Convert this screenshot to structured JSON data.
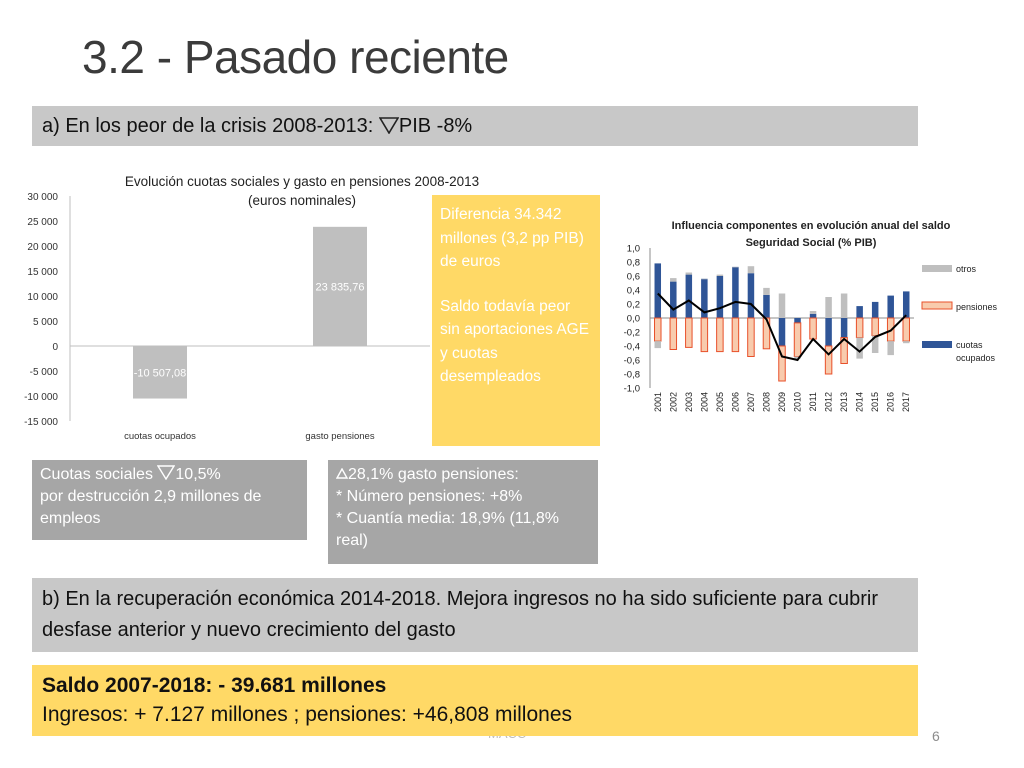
{
  "slide": {
    "title": "3.2 - Pasado reciente",
    "page_number": "6",
    "footer": "MACC"
  },
  "section_a": {
    "text": "a) En los peor de la crisis 2008-2013: ",
    "symbol": "triangle-down-icon",
    "after": "PIB -8%"
  },
  "chart1": {
    "title_line1": "Evolución cuotas sociales y gasto en pensiones 2008-2013",
    "title_line2": "(euros nominales)"
  },
  "yellow_note": {
    "p1": "Diferencia 34.342 millones (3,2 pp PIB) de euros",
    "p2": "Saldo todavía peor sin aportaciones AGE y cuotas desempleados"
  },
  "note_cuotas": {
    "line1": "Cuotas sociales ",
    "line1_after": "10,5%",
    "line2": "por destrucción 2,9 millones de empleos"
  },
  "note_gasto": {
    "line1": "28,1% gasto pensiones:",
    "line2": "* Número pensiones: +8%",
    "line3": "* Cuantía media: 18,9%  (11,8% real)"
  },
  "section_b": {
    "text": "b) En la recuperación económica 2014-2018.  Mejora ingresos no ha sido suficiente para cubrir desfase anterior y nuevo crecimiento del gasto"
  },
  "saldo": {
    "line1": "Saldo 2007-2018: - 39.681 millones",
    "line2": "Ingresos: + 7.127 millones ; pensiones: +46,808 millones"
  },
  "colors": {
    "gray_box": "#c8c8c8",
    "note_gray": "#a6a6a6",
    "yellow": "#ffd966",
    "bar_gray": "#bfbfbf",
    "cuotas_blue": "#2f5597",
    "pensiones_fill": "#f8cbad",
    "pensiones_edge": "#e8502a",
    "otros_gray": "#bfbfbf"
  },
  "chart_data": [
    {
      "type": "bar",
      "title": "Evolución cuotas sociales y gasto en pensiones 2008-2013 (euros nominales)",
      "categories": [
        "cuotas ocupados",
        "gasto pensiones"
      ],
      "values": [
        -10507.08,
        23835.76
      ],
      "value_labels": [
        "-10 507,08",
        "23 835,76"
      ],
      "ylim": [
        -15000,
        30000
      ],
      "yticks": [
        30000,
        25000,
        20000,
        15000,
        10000,
        5000,
        0,
        -5000,
        -10000,
        -15000
      ],
      "ytick_labels": [
        "30 000",
        "25 000",
        "20 000",
        "15 000",
        "10 000",
        "5 000",
        "0",
        "-5 000",
        "-10 000",
        "-15 000"
      ],
      "xlabel": "",
      "ylabel": ""
    },
    {
      "type": "bar",
      "stacked": true,
      "title": "Influencia componentes en evolución anual del saldo Seguridad Social (% PIB)",
      "categories": [
        "2001",
        "2002",
        "2003",
        "2004",
        "2005",
        "2006",
        "2007",
        "2008",
        "2009",
        "2010",
        "2011",
        "2012",
        "2013",
        "2014",
        "2015",
        "2016",
        "2017"
      ],
      "ylim": [
        -1.0,
        1.0
      ],
      "yticks": [
        1.0,
        0.8,
        0.6,
        0.4,
        0.2,
        0.0,
        -0.2,
        -0.4,
        -0.6,
        -0.8,
        -1.0
      ],
      "ytick_labels": [
        "1,0",
        "0,8",
        "0,6",
        "0,4",
        "0,2",
        "0,0",
        "-0,2",
        "-0,4",
        "-0,6",
        "-0,8",
        "-1,0"
      ],
      "legend": [
        "otros",
        "pensiones",
        "cuotas ocupados"
      ],
      "series": [
        {
          "name": "cuotas ocupados",
          "values": [
            0.78,
            0.52,
            0.62,
            0.56,
            0.6,
            0.73,
            0.64,
            0.33,
            -0.4,
            -0.07,
            0.06,
            -0.4,
            -0.28,
            0.17,
            0.23,
            0.32,
            0.38
          ]
        },
        {
          "name": "pensiones",
          "values": [
            -0.33,
            -0.45,
            -0.42,
            -0.48,
            -0.48,
            -0.48,
            -0.55,
            -0.44,
            -0.5,
            -0.48,
            -0.3,
            -0.4,
            -0.37,
            -0.28,
            -0.25,
            -0.33,
            -0.33
          ]
        },
        {
          "name": "otros",
          "values": [
            -0.1,
            0.05,
            0.03,
            0.0,
            0.02,
            0.0,
            0.1,
            0.1,
            0.35,
            -0.03,
            0.04,
            0.3,
            0.35,
            -0.3,
            -0.25,
            -0.2,
            -0.03
          ]
        },
        {
          "name": "saldo",
          "type": "line",
          "values": [
            0.35,
            0.12,
            0.25,
            0.08,
            0.14,
            0.23,
            0.2,
            -0.02,
            -0.55,
            -0.6,
            -0.3,
            -0.52,
            -0.3,
            -0.48,
            -0.27,
            -0.18,
            0.04
          ]
        }
      ]
    }
  ]
}
